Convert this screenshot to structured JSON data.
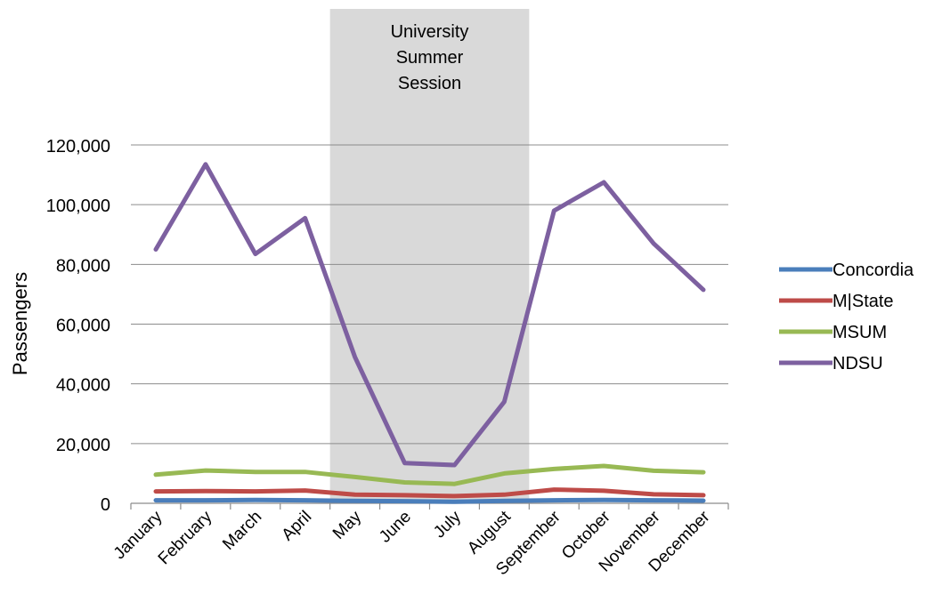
{
  "chart_data": {
    "type": "line",
    "title": "",
    "xlabel": "",
    "ylabel": "Passengers",
    "ylim": [
      0,
      120000
    ],
    "yticks": [
      0,
      20000,
      40000,
      60000,
      80000,
      100000,
      120000
    ],
    "ytick_labels": [
      "0",
      "20,000",
      "40,000",
      "60,000",
      "80,000",
      "100,000",
      "120,000"
    ],
    "grid": true,
    "legend_position": "right",
    "categories": [
      "January",
      "February",
      "March",
      "April",
      "May",
      "June",
      "July",
      "August",
      "September",
      "October",
      "November",
      "December"
    ],
    "series": [
      {
        "name": "Concordia",
        "color": "#4a7ebb",
        "values": [
          1000,
          1000,
          1100,
          1000,
          800,
          700,
          500,
          800,
          1000,
          1100,
          1000,
          900
        ]
      },
      {
        "name": "M|State",
        "color": "#be4b48",
        "values": [
          4000,
          4100,
          4000,
          4300,
          2900,
          2700,
          2400,
          2900,
          4600,
          4200,
          3000,
          2700
        ]
      },
      {
        "name": "MSUM",
        "color": "#98b954",
        "values": [
          9600,
          11000,
          10500,
          10500,
          8800,
          7000,
          6500,
          10000,
          11500,
          12500,
          10900,
          10400
        ]
      },
      {
        "name": "NDSU",
        "color": "#7d60a0",
        "values": [
          85000,
          113500,
          83500,
          95500,
          49000,
          13500,
          12800,
          34000,
          98000,
          107500,
          87000,
          71500
        ]
      }
    ],
    "annotation": {
      "text_lines": [
        "University",
        "Summer",
        "Session"
      ],
      "from_category": "May",
      "to_category": "August",
      "fill": "#d9d9d9"
    }
  }
}
